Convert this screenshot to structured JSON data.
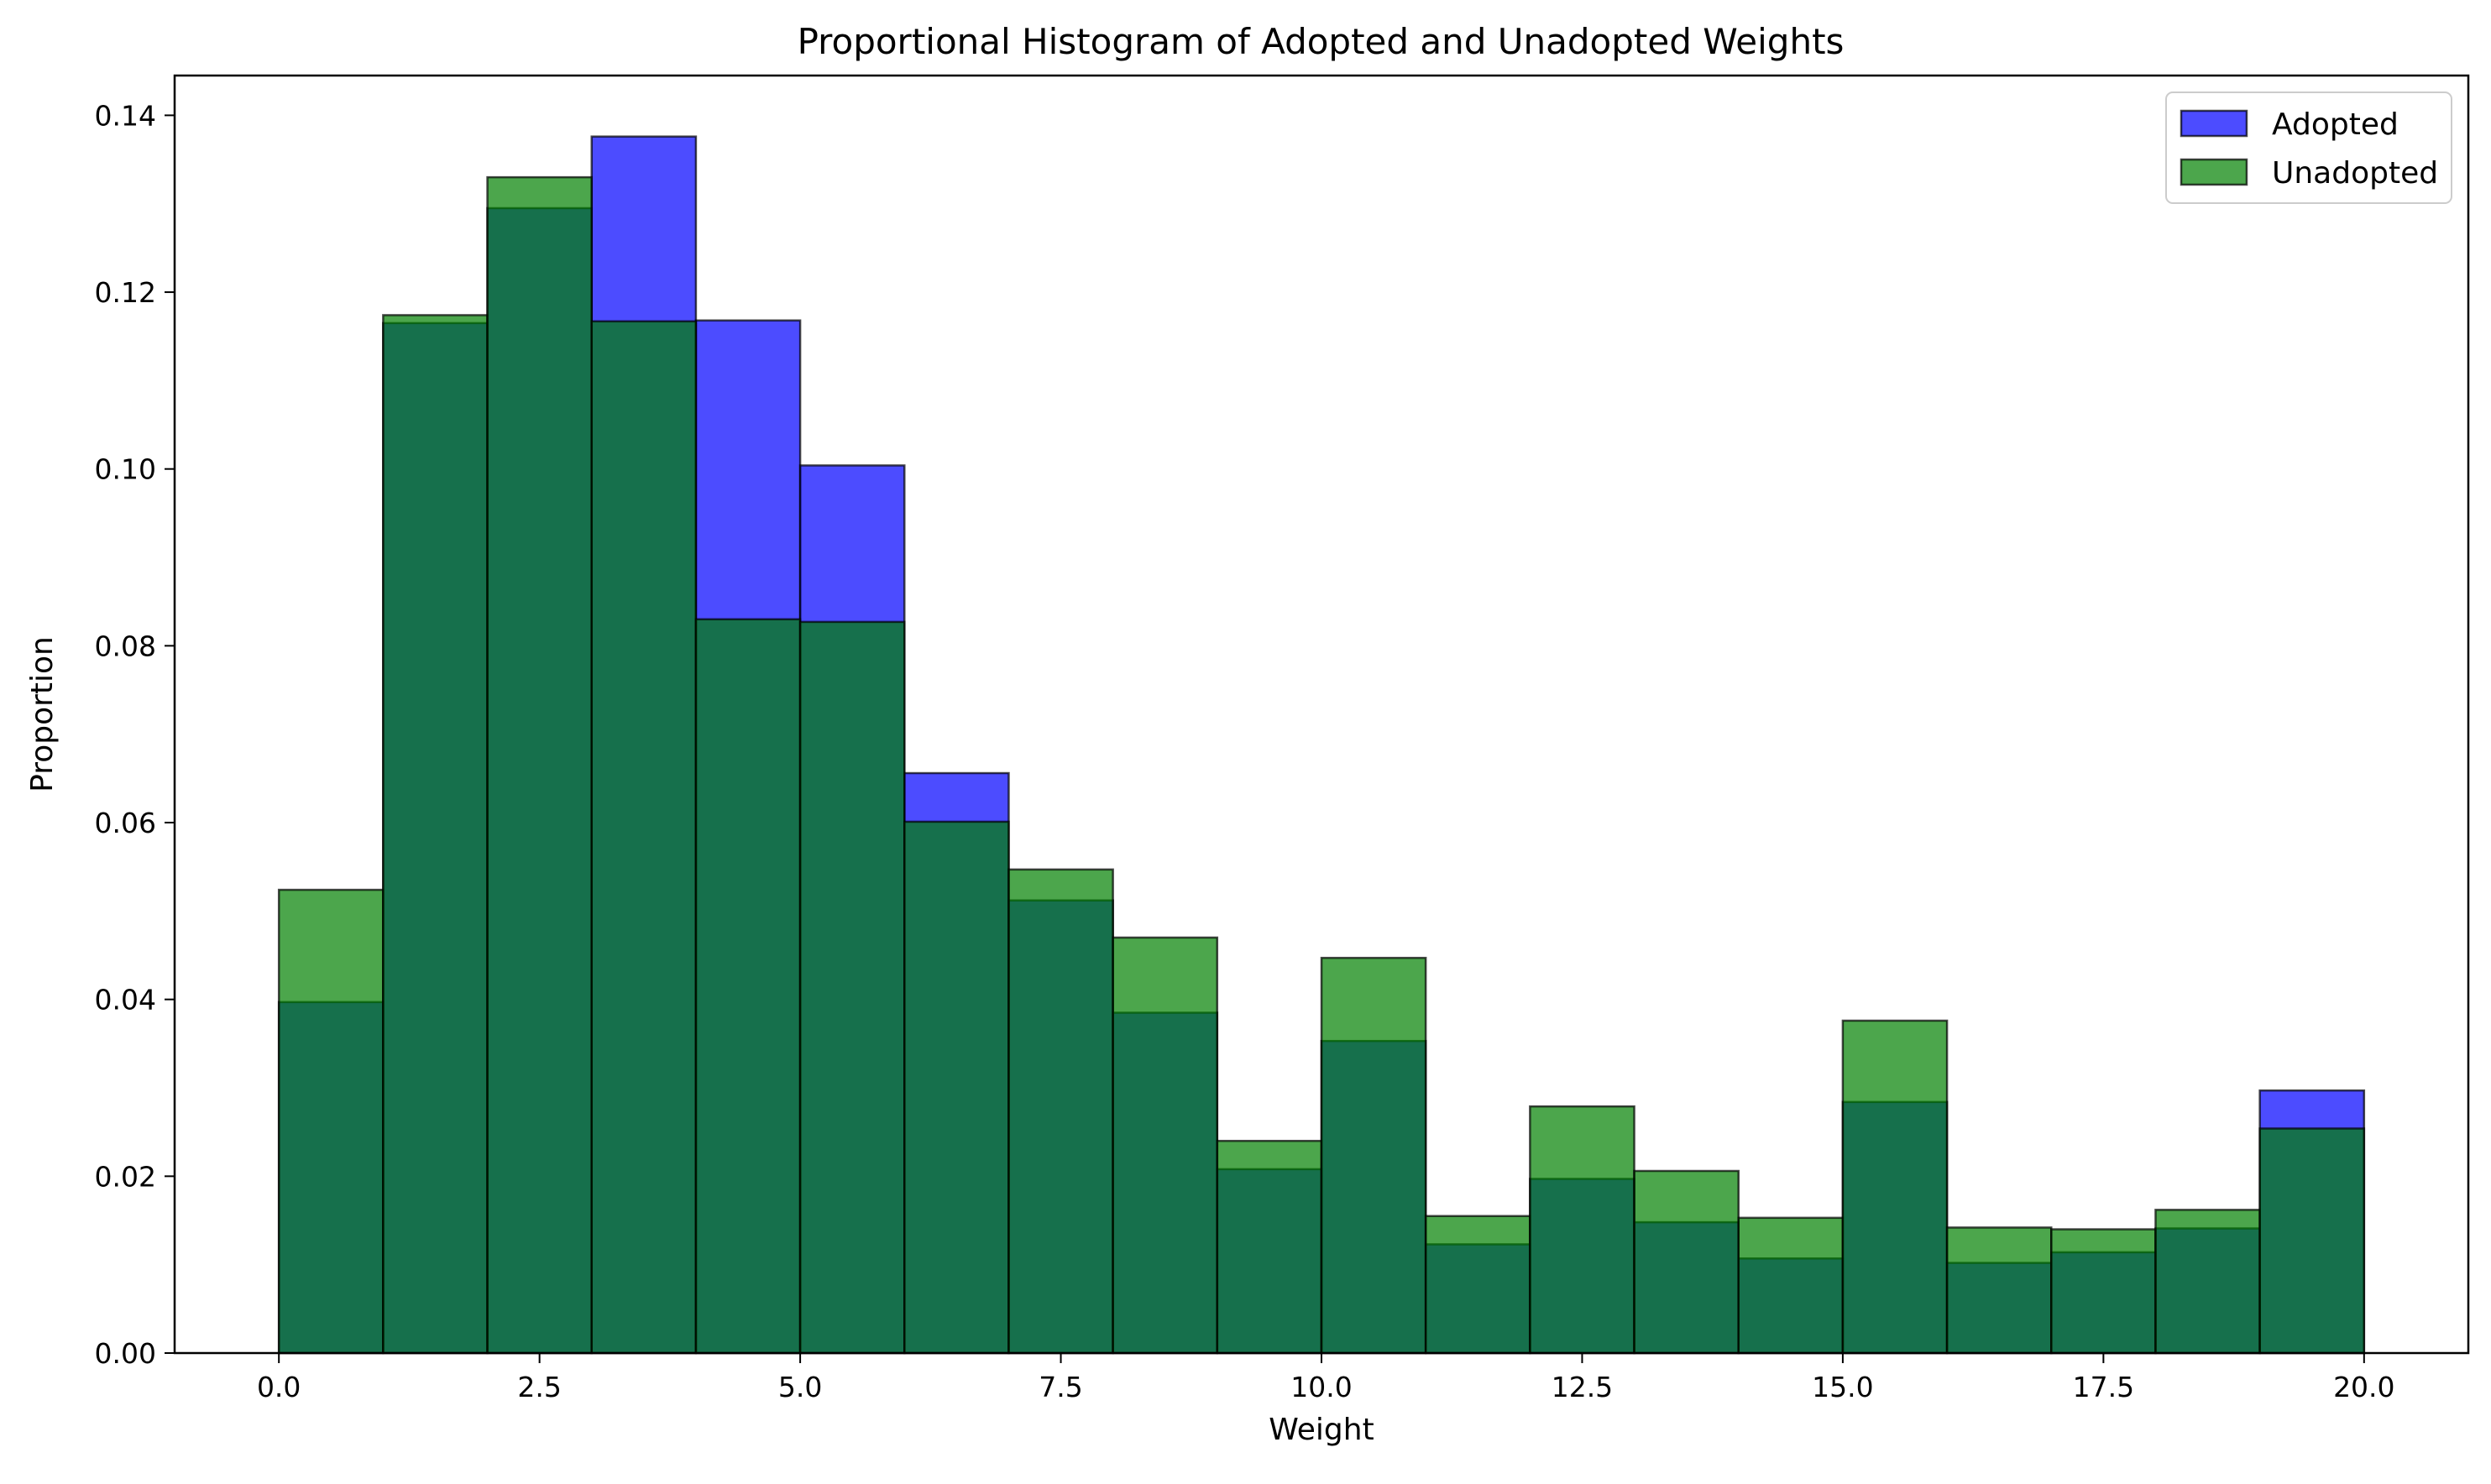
{
  "chart_data": {
    "type": "bar",
    "title": "Proportional Histogram of Adopted and Unadopted Weights",
    "xlabel": "Weight",
    "ylabel": "Proportion",
    "xlim": [
      -1.0,
      21.0
    ],
    "ylim": [
      0.0,
      0.1445
    ],
    "xticks": [
      0.0,
      2.5,
      5.0,
      7.5,
      10.0,
      12.5,
      15.0,
      17.5,
      20.0
    ],
    "xtick_labels": [
      "0.0",
      "2.5",
      "5.0",
      "7.5",
      "10.0",
      "12.5",
      "15.0",
      "17.5",
      "20.0"
    ],
    "yticks": [
      0.0,
      0.02,
      0.04,
      0.06,
      0.08,
      0.1,
      0.12,
      0.14
    ],
    "ytick_labels": [
      "0.00",
      "0.02",
      "0.04",
      "0.06",
      "0.08",
      "0.10",
      "0.12",
      "0.14"
    ],
    "bin_edges": [
      0,
      1,
      2,
      3,
      4,
      5,
      6,
      7,
      8,
      9,
      10,
      11,
      12,
      13,
      14,
      15,
      16,
      17,
      18,
      19,
      20
    ],
    "grid": false,
    "legend_position": "top-right",
    "series": [
      {
        "name": "Adopted",
        "color": "#0000ff",
        "alpha": 0.7,
        "values": [
          0.0397,
          0.1165,
          0.1295,
          0.1376,
          0.1168,
          0.1004,
          0.0656,
          0.0512,
          0.0385,
          0.0208,
          0.0353,
          0.0123,
          0.0197,
          0.0148,
          0.0107,
          0.0284,
          0.0102,
          0.0114,
          0.0141,
          0.0297
        ]
      },
      {
        "name": "Unadopted",
        "color": "#008000",
        "alpha": 0.7,
        "values": [
          0.0524,
          0.1174,
          0.133,
          0.1167,
          0.083,
          0.0827,
          0.0601,
          0.0547,
          0.047,
          0.024,
          0.0447,
          0.0155,
          0.0279,
          0.0206,
          0.0153,
          0.0376,
          0.0142,
          0.014,
          0.0162,
          0.0254
        ]
      }
    ]
  }
}
